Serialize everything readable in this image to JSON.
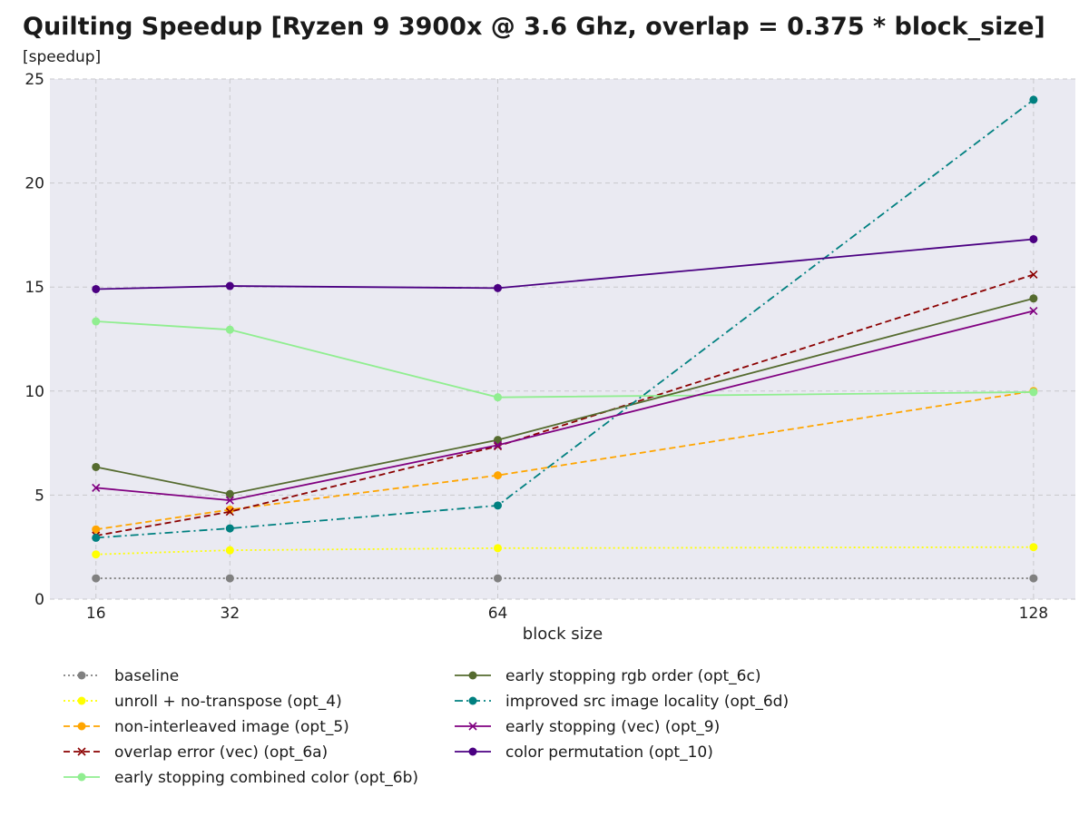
{
  "chart_data": {
    "type": "line",
    "title": "Quilting Speedup [Ryzen 9 3900x @ 3.6 Ghz, overlap = 0.375 * block_size]",
    "ylabel": "[speedup]",
    "xlabel": "block size",
    "x": [
      16,
      32,
      64,
      128
    ],
    "xlim": [
      10.5,
      133
    ],
    "ylim": [
      0,
      25
    ],
    "xticks": [
      "16",
      "32",
      "64",
      "128"
    ],
    "yticks": [
      "0",
      "5",
      "10",
      "15",
      "20",
      "25"
    ],
    "grid": true,
    "legend_position": "bottom-left, two columns",
    "series": [
      {
        "name": "baseline",
        "values": [
          1.0,
          1.0,
          1.0,
          1.0
        ],
        "color": "#808080",
        "dash": "dotted",
        "marker": "circle"
      },
      {
        "name": "unroll + no-transpose (opt_4)",
        "values": [
          2.15,
          2.35,
          2.45,
          2.5
        ],
        "color": "#ffff00",
        "dash": "dotted",
        "marker": "circle"
      },
      {
        "name": "non-interleaved image (opt_5)",
        "values": [
          3.35,
          4.3,
          5.95,
          10.0
        ],
        "color": "#ffa500",
        "dash": "dashed",
        "marker": "circle"
      },
      {
        "name": "overlap error (vec) (opt_6a)",
        "values": [
          3.05,
          4.2,
          7.35,
          15.6
        ],
        "color": "#8b0000",
        "dash": "dashed",
        "marker": "x"
      },
      {
        "name": "early stopping combined color (opt_6b)",
        "values": [
          13.35,
          12.95,
          9.7,
          9.95
        ],
        "color": "#90ee90",
        "dash": "solid",
        "marker": "circle"
      },
      {
        "name": "early stopping rgb order (opt_6c)",
        "values": [
          6.35,
          5.05,
          7.65,
          14.45
        ],
        "color": "#556b2f",
        "dash": "solid",
        "marker": "circle"
      },
      {
        "name": "improved src image locality (opt_6d)",
        "values": [
          2.95,
          3.4,
          4.5,
          24.0
        ],
        "color": "#008080",
        "dash": "dashdot",
        "marker": "circle"
      },
      {
        "name": "early stopping (vec) (opt_9)",
        "values": [
          5.35,
          4.75,
          7.4,
          13.85
        ],
        "color": "#800080",
        "dash": "solid",
        "marker": "x"
      },
      {
        "name": "color permutation (opt_10)",
        "values": [
          14.9,
          15.05,
          14.95,
          17.3
        ],
        "color": "#4b0082",
        "dash": "solid",
        "marker": "circle"
      }
    ]
  }
}
